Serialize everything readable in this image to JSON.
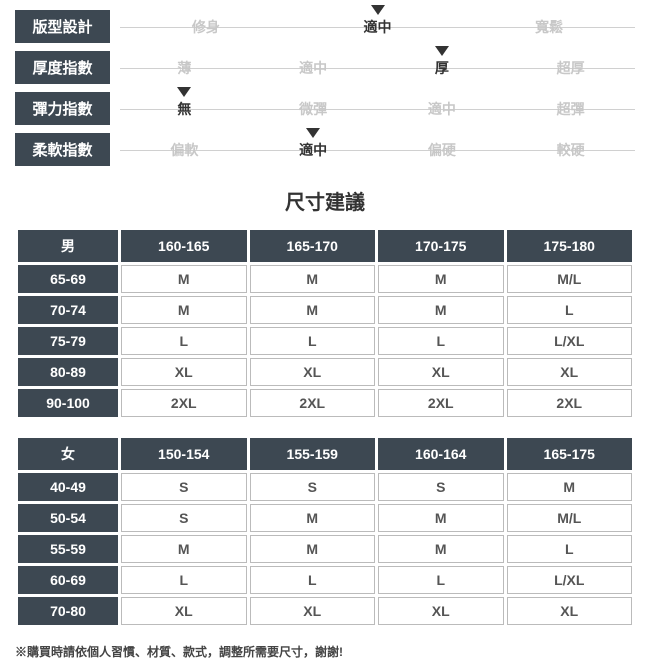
{
  "specs": [
    {
      "label": "版型設計",
      "options": [
        "修身",
        "適中",
        "寬鬆"
      ],
      "active": 1
    },
    {
      "label": "厚度指數",
      "options": [
        "薄",
        "適中",
        "厚",
        "超厚"
      ],
      "active": 2
    },
    {
      "label": "彈力指數",
      "options": [
        "無",
        "微彈",
        "適中",
        "超彈"
      ],
      "active": 0
    },
    {
      "label": "柔軟指數",
      "options": [
        "偏軟",
        "適中",
        "偏硬",
        "較硬"
      ],
      "active": 1
    }
  ],
  "section_title": "尺寸建議",
  "tables": [
    {
      "header": [
        "男",
        "160-165",
        "165-170",
        "170-175",
        "175-180"
      ],
      "rows": [
        [
          "65-69",
          "M",
          "M",
          "M",
          "M/L"
        ],
        [
          "70-74",
          "M",
          "M",
          "M",
          "L"
        ],
        [
          "75-79",
          "L",
          "L",
          "L",
          "L/XL"
        ],
        [
          "80-89",
          "XL",
          "XL",
          "XL",
          "XL"
        ],
        [
          "90-100",
          "2XL",
          "2XL",
          "2XL",
          "2XL"
        ]
      ]
    },
    {
      "header": [
        "女",
        "150-154",
        "155-159",
        "160-164",
        "165-175"
      ],
      "rows": [
        [
          "40-49",
          "S",
          "S",
          "S",
          "M"
        ],
        [
          "50-54",
          "S",
          "M",
          "M",
          "M/L"
        ],
        [
          "55-59",
          "M",
          "M",
          "M",
          "L"
        ],
        [
          "60-69",
          "L",
          "L",
          "L",
          "L/XL"
        ],
        [
          "70-80",
          "XL",
          "XL",
          "XL",
          "XL"
        ]
      ]
    }
  ],
  "note": "※購買時請依個人習慣、材質、款式，調整所需要尺寸，謝謝!",
  "colors": {
    "header_bg": "#3d4852",
    "header_text": "#ffffff",
    "inactive_text": "#c8c8c8",
    "active_text": "#333333",
    "cell_text": "#555555",
    "cell_border": "#bbbbbb"
  }
}
